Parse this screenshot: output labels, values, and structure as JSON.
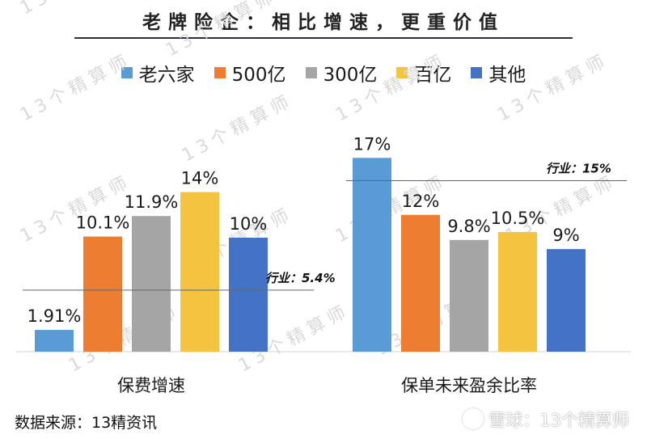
{
  "title": "老牌险企：相比增速，更重价值",
  "source": "数据来源：13精资讯",
  "brand": "雪球：13个精算师",
  "watermark": "13个精算师",
  "chart_data": {
    "type": "bar",
    "series": [
      {
        "name": "老六家",
        "color": "#5b9bd5"
      },
      {
        "name": "500亿",
        "color": "#ed7d31"
      },
      {
        "name": "300亿",
        "color": "#a5a5a5"
      },
      {
        "name": "百亿",
        "color": "#f4c33f"
      },
      {
        "name": "其他",
        "color": "#4472c4"
      }
    ],
    "groups": [
      {
        "category": "保费增速",
        "values": [
          1.91,
          10.1,
          11.9,
          14,
          10
        ],
        "labels": [
          "1.91%",
          "10.1%",
          "11.9%",
          "14%",
          "10%"
        ],
        "benchmark": {
          "label": "行业：5.4%",
          "value": 5.4
        }
      },
      {
        "category": "保单未来盈余比率",
        "values": [
          17,
          12,
          9.8,
          10.5,
          9
        ],
        "labels": [
          "17%",
          "12%",
          "9.8%",
          "10.5%",
          "9%"
        ],
        "benchmark": {
          "label": "行业：15%",
          "value": 15
        }
      }
    ],
    "legend_position": "top",
    "grid": false
  }
}
